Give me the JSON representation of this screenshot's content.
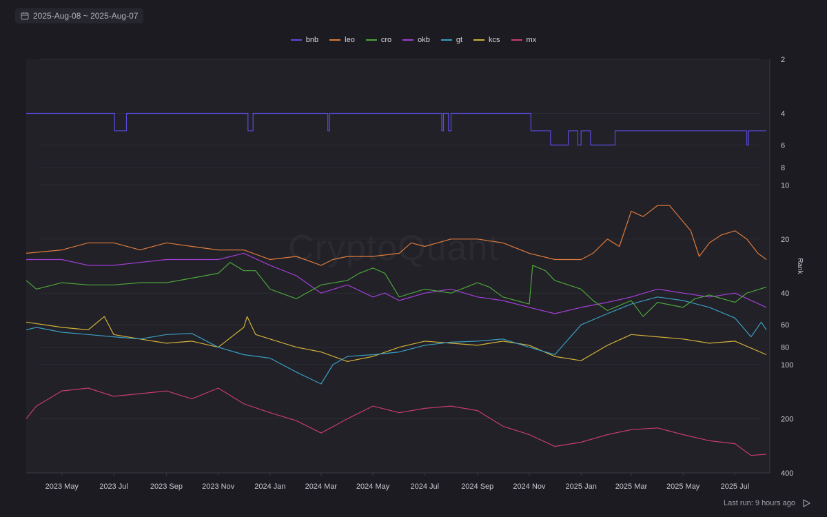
{
  "date_range": {
    "label": "2025-Aug-08 ~ 2025-Aug-07"
  },
  "watermark": "CryptoQuant",
  "footer": {
    "last_run": "Last run: 9 hours ago",
    "play_icon": "play-icon"
  },
  "colors": {
    "background": "#1b1b21",
    "plot": "#212127",
    "grid": "#2c2c34"
  },
  "chart_data": {
    "type": "line",
    "x_range": [
      "2023-03-20",
      "2025-08-07"
    ],
    "y_scale": "log",
    "y_reversed": true,
    "ylabel": "Rank",
    "ylim": [
      2,
      400
    ],
    "y_ticks": [
      2,
      4,
      6,
      8,
      10,
      20,
      40,
      60,
      80,
      100,
      200,
      400
    ],
    "x_tick_labels": [
      "2023 May",
      "2023 Jul",
      "2023 Sep",
      "2023 Nov",
      "2024 Jan",
      "2024 Mar",
      "2024 May",
      "2024 Jul",
      "2024 Sep",
      "2024 Nov",
      "2025 Jan",
      "2025 Mar",
      "2025 May",
      "2025 Jul"
    ],
    "x_tick_dates": [
      "2023-05-01",
      "2023-07-01",
      "2023-09-01",
      "2023-11-01",
      "2024-01-01",
      "2024-03-01",
      "2024-05-01",
      "2024-07-01",
      "2024-09-01",
      "2024-11-01",
      "2025-01-01",
      "2025-03-01",
      "2025-05-01",
      "2025-07-01"
    ],
    "legend_position": "top-center",
    "grid": true,
    "series": [
      {
        "name": "bnb",
        "color": "#5b4be0",
        "step": true,
        "points": [
          [
            "2023-03-20",
            4
          ],
          [
            "2023-06-28",
            4
          ],
          [
            "2023-07-02",
            5
          ],
          [
            "2023-07-14",
            5
          ],
          [
            "2023-07-16",
            4
          ],
          [
            "2023-12-05",
            4
          ],
          [
            "2023-12-06",
            5
          ],
          [
            "2023-12-10",
            5
          ],
          [
            "2023-12-12",
            4
          ],
          [
            "2024-03-08",
            4
          ],
          [
            "2024-03-09",
            5
          ],
          [
            "2024-03-11",
            4
          ],
          [
            "2024-07-20",
            4
          ],
          [
            "2024-07-21",
            5
          ],
          [
            "2024-07-23",
            4
          ],
          [
            "2024-07-28",
            4
          ],
          [
            "2024-07-29",
            5
          ],
          [
            "2024-08-01",
            4
          ],
          [
            "2024-11-01",
            4
          ],
          [
            "2024-11-03",
            5
          ],
          [
            "2024-11-25",
            5
          ],
          [
            "2024-11-26",
            6
          ],
          [
            "2024-12-15",
            6
          ],
          [
            "2024-12-17",
            5
          ],
          [
            "2024-12-27",
            5
          ],
          [
            "2024-12-28",
            6
          ],
          [
            "2024-12-31",
            6
          ],
          [
            "2025-01-01",
            5
          ],
          [
            "2025-01-11",
            5
          ],
          [
            "2025-01-12",
            6
          ],
          [
            "2025-02-08",
            6
          ],
          [
            "2025-02-10",
            5
          ],
          [
            "2025-07-14",
            5
          ],
          [
            "2025-07-15",
            6
          ],
          [
            "2025-07-17",
            5
          ],
          [
            "2025-08-07",
            5
          ]
        ]
      },
      {
        "name": "leo",
        "color": "#e07b3c",
        "points": [
          [
            "2023-03-20",
            24
          ],
          [
            "2023-05-01",
            23
          ],
          [
            "2023-06-01",
            21
          ],
          [
            "2023-07-01",
            21
          ],
          [
            "2023-08-01",
            23
          ],
          [
            "2023-09-01",
            21
          ],
          [
            "2023-10-01",
            22
          ],
          [
            "2023-11-01",
            23
          ],
          [
            "2023-12-01",
            23
          ],
          [
            "2024-01-01",
            26
          ],
          [
            "2024-02-01",
            25
          ],
          [
            "2024-03-01",
            28
          ],
          [
            "2024-03-15",
            26
          ],
          [
            "2024-04-01",
            25
          ],
          [
            "2024-05-01",
            25
          ],
          [
            "2024-06-01",
            24
          ],
          [
            "2024-06-15",
            21
          ],
          [
            "2024-07-01",
            22
          ],
          [
            "2024-08-01",
            20
          ],
          [
            "2024-09-01",
            20
          ],
          [
            "2024-10-01",
            21
          ],
          [
            "2024-11-01",
            24
          ],
          [
            "2024-12-01",
            26
          ],
          [
            "2025-01-01",
            26
          ],
          [
            "2025-01-15",
            24
          ],
          [
            "2025-02-01",
            20
          ],
          [
            "2025-02-15",
            22
          ],
          [
            "2025-03-01",
            14
          ],
          [
            "2025-03-15",
            15
          ],
          [
            "2025-04-01",
            13
          ],
          [
            "2025-04-15",
            13
          ],
          [
            "2025-05-01",
            16
          ],
          [
            "2025-05-10",
            18
          ],
          [
            "2025-05-20",
            25
          ],
          [
            "2025-06-01",
            21
          ],
          [
            "2025-06-15",
            19
          ],
          [
            "2025-07-01",
            18
          ],
          [
            "2025-07-15",
            20
          ],
          [
            "2025-07-28",
            24
          ],
          [
            "2025-08-07",
            26
          ]
        ]
      },
      {
        "name": "cro",
        "color": "#4ea63c",
        "points": [
          [
            "2023-03-20",
            34
          ],
          [
            "2023-04-01",
            38
          ],
          [
            "2023-05-01",
            35
          ],
          [
            "2023-06-01",
            36
          ],
          [
            "2023-07-01",
            36
          ],
          [
            "2023-08-01",
            35
          ],
          [
            "2023-09-01",
            35
          ],
          [
            "2023-10-01",
            33
          ],
          [
            "2023-11-01",
            31
          ],
          [
            "2023-11-15",
            27
          ],
          [
            "2023-12-01",
            30
          ],
          [
            "2023-12-15",
            30
          ],
          [
            "2024-01-01",
            38
          ],
          [
            "2024-02-01",
            43
          ],
          [
            "2024-03-01",
            36
          ],
          [
            "2024-04-01",
            34
          ],
          [
            "2024-04-15",
            31
          ],
          [
            "2024-05-01",
            29
          ],
          [
            "2024-05-15",
            31
          ],
          [
            "2024-06-01",
            42
          ],
          [
            "2024-07-01",
            38
          ],
          [
            "2024-08-01",
            40
          ],
          [
            "2024-09-01",
            35
          ],
          [
            "2024-09-15",
            37
          ],
          [
            "2024-10-01",
            42
          ],
          [
            "2024-11-01",
            46
          ],
          [
            "2024-11-05",
            28
          ],
          [
            "2024-11-20",
            30
          ],
          [
            "2024-12-01",
            34
          ],
          [
            "2025-01-01",
            38
          ],
          [
            "2025-01-15",
            44
          ],
          [
            "2025-02-01",
            50
          ],
          [
            "2025-03-01",
            44
          ],
          [
            "2025-03-15",
            54
          ],
          [
            "2025-04-01",
            45
          ],
          [
            "2025-05-01",
            48
          ],
          [
            "2025-05-15",
            43
          ],
          [
            "2025-06-01",
            41
          ],
          [
            "2025-07-01",
            45
          ],
          [
            "2025-07-15",
            40
          ],
          [
            "2025-08-07",
            37
          ]
        ]
      },
      {
        "name": "okb",
        "color": "#a43fd8",
        "points": [
          [
            "2023-03-20",
            26
          ],
          [
            "2023-04-01",
            26
          ],
          [
            "2023-05-01",
            26
          ],
          [
            "2023-06-01",
            28
          ],
          [
            "2023-07-01",
            28
          ],
          [
            "2023-08-01",
            27
          ],
          [
            "2023-09-01",
            26
          ],
          [
            "2023-10-01",
            26
          ],
          [
            "2023-11-01",
            26
          ],
          [
            "2023-12-01",
            24
          ],
          [
            "2024-01-01",
            28
          ],
          [
            "2024-02-01",
            32
          ],
          [
            "2024-03-01",
            40
          ],
          [
            "2024-04-01",
            36
          ],
          [
            "2024-05-01",
            42
          ],
          [
            "2024-05-15",
            40
          ],
          [
            "2024-06-01",
            44
          ],
          [
            "2024-07-01",
            40
          ],
          [
            "2024-08-01",
            38
          ],
          [
            "2024-09-01",
            42
          ],
          [
            "2024-10-01",
            44
          ],
          [
            "2024-11-01",
            48
          ],
          [
            "2024-12-01",
            52
          ],
          [
            "2025-01-01",
            48
          ],
          [
            "2025-02-01",
            45
          ],
          [
            "2025-03-01",
            42
          ],
          [
            "2025-04-01",
            38
          ],
          [
            "2025-05-01",
            40
          ],
          [
            "2025-06-01",
            42
          ],
          [
            "2025-07-01",
            40
          ],
          [
            "2025-08-07",
            48
          ]
        ]
      },
      {
        "name": "gt",
        "color": "#3a9ec3",
        "points": [
          [
            "2023-03-20",
            64
          ],
          [
            "2023-04-01",
            62
          ],
          [
            "2023-05-01",
            66
          ],
          [
            "2023-06-01",
            68
          ],
          [
            "2023-07-01",
            70
          ],
          [
            "2023-08-01",
            72
          ],
          [
            "2023-09-01",
            68
          ],
          [
            "2023-10-01",
            67
          ],
          [
            "2023-11-01",
            80
          ],
          [
            "2023-12-01",
            88
          ],
          [
            "2024-01-01",
            92
          ],
          [
            "2024-02-01",
            110
          ],
          [
            "2024-03-01",
            128
          ],
          [
            "2024-03-15",
            100
          ],
          [
            "2024-04-01",
            90
          ],
          [
            "2024-05-01",
            88
          ],
          [
            "2024-06-01",
            85
          ],
          [
            "2024-07-01",
            78
          ],
          [
            "2024-08-01",
            75
          ],
          [
            "2024-09-01",
            74
          ],
          [
            "2024-10-01",
            72
          ],
          [
            "2024-11-01",
            80
          ],
          [
            "2024-12-01",
            88
          ],
          [
            "2025-01-01",
            60
          ],
          [
            "2025-02-01",
            52
          ],
          [
            "2025-03-01",
            46
          ],
          [
            "2025-04-01",
            42
          ],
          [
            "2025-05-01",
            44
          ],
          [
            "2025-06-01",
            48
          ],
          [
            "2025-07-01",
            55
          ],
          [
            "2025-07-20",
            70
          ],
          [
            "2025-08-01",
            58
          ],
          [
            "2025-08-07",
            64
          ]
        ]
      },
      {
        "name": "kcs",
        "color": "#d4b13a",
        "points": [
          [
            "2023-03-20",
            58
          ],
          [
            "2023-05-01",
            62
          ],
          [
            "2023-06-01",
            64
          ],
          [
            "2023-06-20",
            54
          ],
          [
            "2023-07-01",
            68
          ],
          [
            "2023-08-01",
            72
          ],
          [
            "2023-09-01",
            76
          ],
          [
            "2023-10-01",
            74
          ],
          [
            "2023-11-01",
            80
          ],
          [
            "2023-12-01",
            62
          ],
          [
            "2023-12-05",
            54
          ],
          [
            "2023-12-15",
            68
          ],
          [
            "2024-01-01",
            72
          ],
          [
            "2024-02-01",
            80
          ],
          [
            "2024-03-01",
            85
          ],
          [
            "2024-04-01",
            96
          ],
          [
            "2024-05-01",
            90
          ],
          [
            "2024-06-01",
            80
          ],
          [
            "2024-07-01",
            74
          ],
          [
            "2024-08-01",
            76
          ],
          [
            "2024-09-01",
            78
          ],
          [
            "2024-10-01",
            74
          ],
          [
            "2024-11-01",
            78
          ],
          [
            "2024-12-01",
            90
          ],
          [
            "2025-01-01",
            95
          ],
          [
            "2025-02-01",
            78
          ],
          [
            "2025-03-01",
            68
          ],
          [
            "2025-04-01",
            70
          ],
          [
            "2025-05-01",
            72
          ],
          [
            "2025-06-01",
            76
          ],
          [
            "2025-07-01",
            74
          ],
          [
            "2025-08-07",
            88
          ]
        ]
      },
      {
        "name": "mx",
        "color": "#c93c6e",
        "points": [
          [
            "2023-03-20",
            200
          ],
          [
            "2023-04-01",
            170
          ],
          [
            "2023-05-01",
            140
          ],
          [
            "2023-06-01",
            135
          ],
          [
            "2023-07-01",
            150
          ],
          [
            "2023-08-01",
            145
          ],
          [
            "2023-09-01",
            140
          ],
          [
            "2023-10-01",
            155
          ],
          [
            "2023-11-01",
            135
          ],
          [
            "2023-12-01",
            165
          ],
          [
            "2024-01-01",
            185
          ],
          [
            "2024-02-01",
            205
          ],
          [
            "2024-03-01",
            240
          ],
          [
            "2024-04-01",
            200
          ],
          [
            "2024-05-01",
            170
          ],
          [
            "2024-06-01",
            185
          ],
          [
            "2024-07-01",
            175
          ],
          [
            "2024-08-01",
            170
          ],
          [
            "2024-09-01",
            180
          ],
          [
            "2024-10-01",
            220
          ],
          [
            "2024-11-01",
            245
          ],
          [
            "2024-12-01",
            285
          ],
          [
            "2025-01-01",
            270
          ],
          [
            "2025-02-01",
            245
          ],
          [
            "2025-03-01",
            230
          ],
          [
            "2025-04-01",
            225
          ],
          [
            "2025-05-01",
            245
          ],
          [
            "2025-06-01",
            265
          ],
          [
            "2025-07-01",
            275
          ],
          [
            "2025-07-20",
            320
          ],
          [
            "2025-08-07",
            315
          ]
        ]
      }
    ]
  }
}
